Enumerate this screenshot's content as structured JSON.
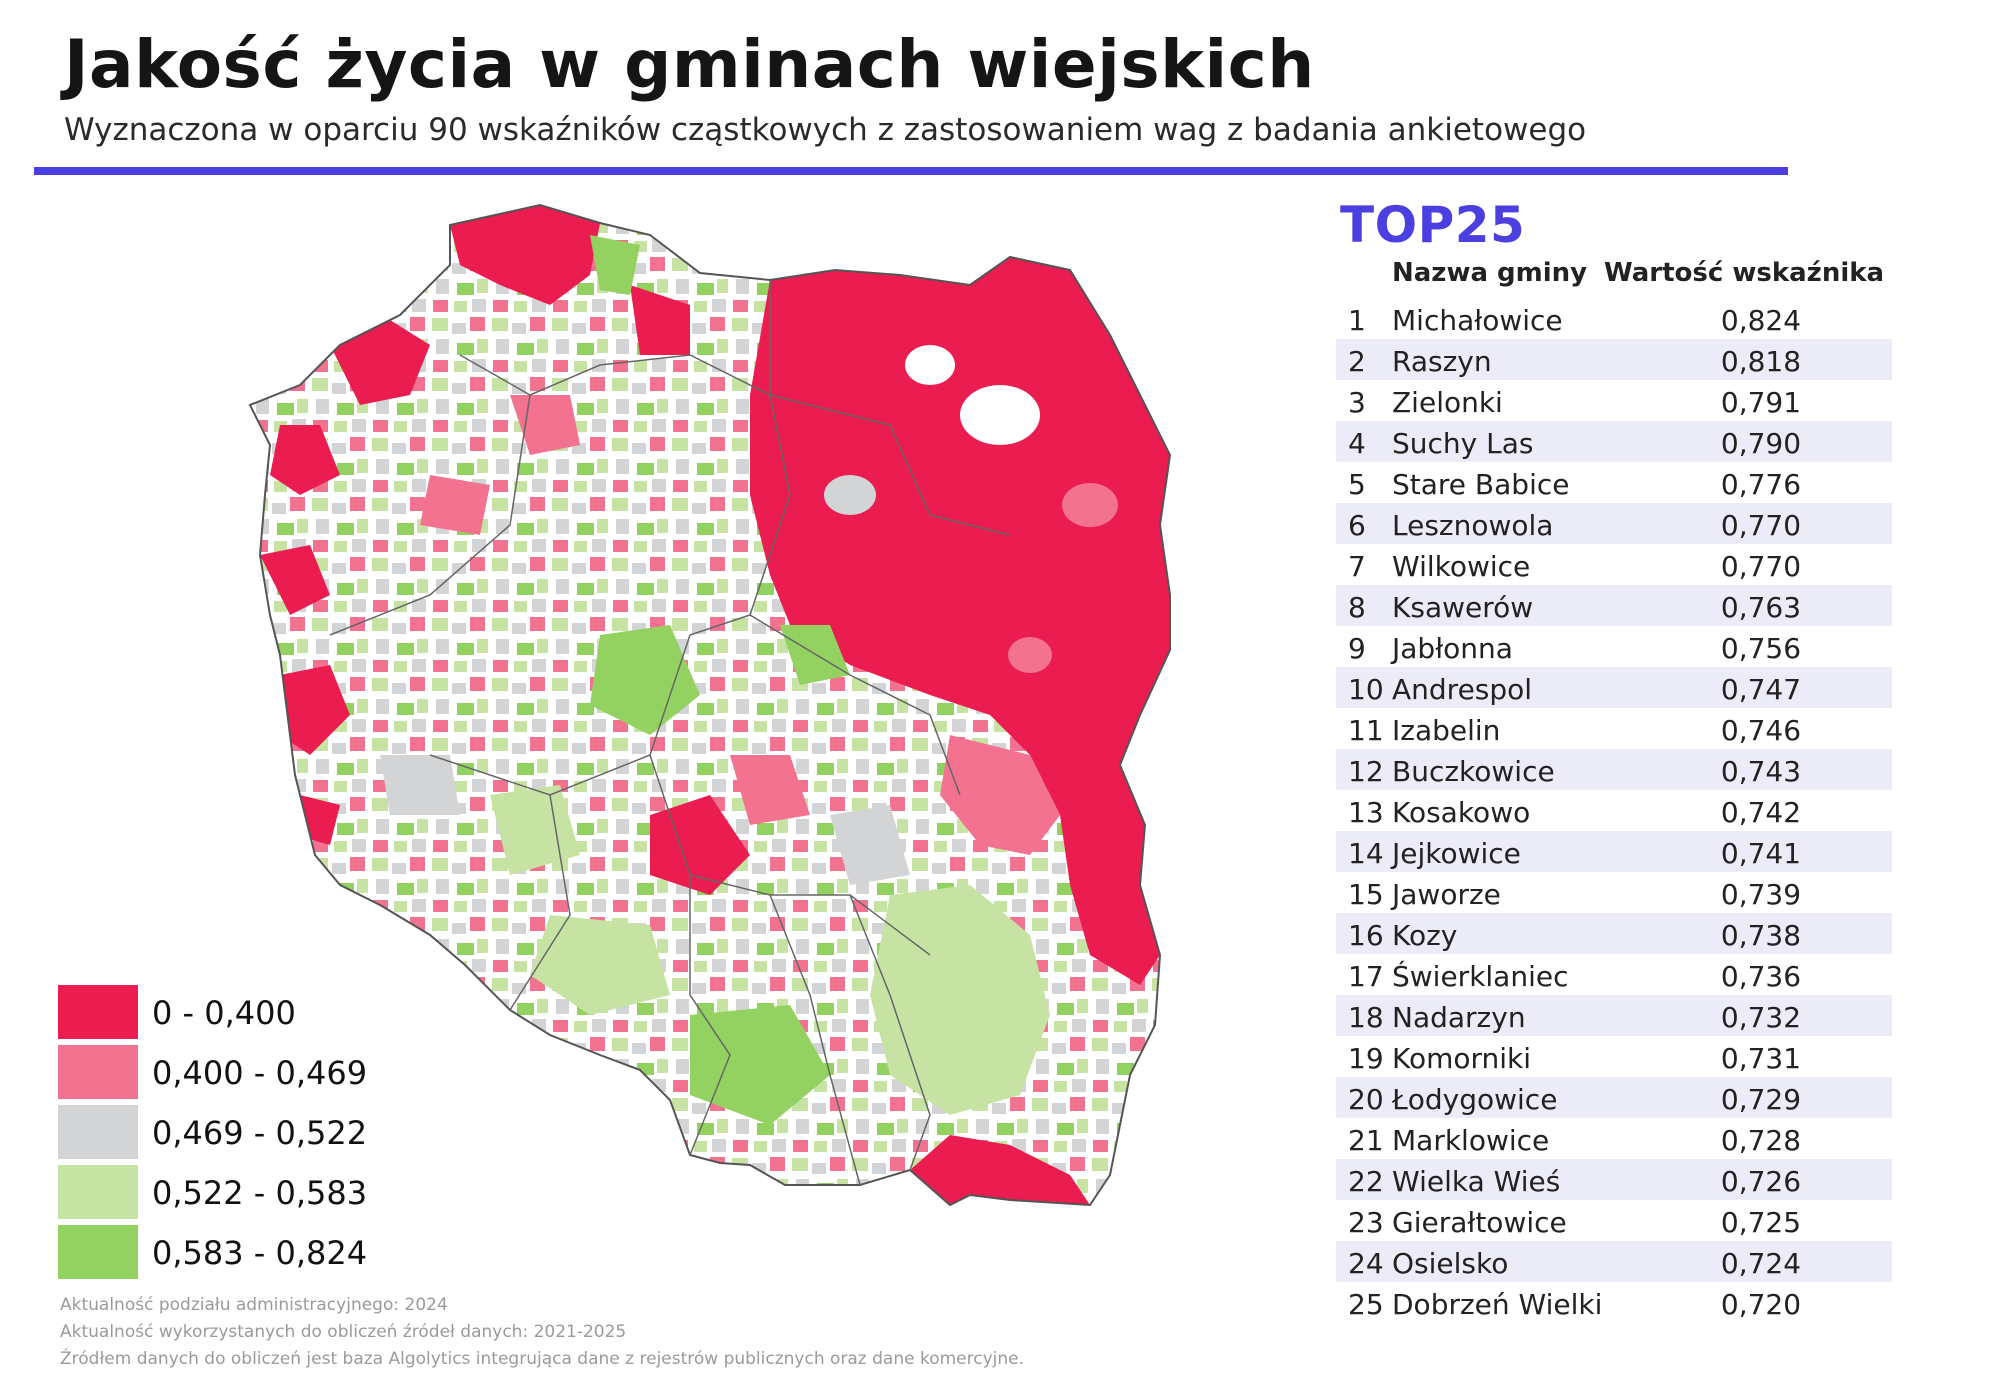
{
  "header": {
    "title": "Jakość życia w gminach wiejskich",
    "subtitle": "Wyznaczona w oparciu 90 wskaźników cząstkowych z zastosowaniem wag z badania ankietowego"
  },
  "colors": {
    "accent": "#4b3fe0",
    "class_0": "#eb1c4f",
    "class_1": "#f3728f",
    "class_2": "#d3d4d6",
    "class_3": "#c6e3a3",
    "class_4": "#93d261",
    "no_data": "#ffffff"
  },
  "legend": {
    "items": [
      {
        "label": "0 - 0,400",
        "color": "#eb1c4f"
      },
      {
        "label": "0,400 - 0,469",
        "color": "#f3728f"
      },
      {
        "label": "0,469 - 0,522",
        "color": "#d3d4d6"
      },
      {
        "label": "0,522 - 0,583",
        "color": "#c6e3a3"
      },
      {
        "label": "0,583 - 0,824",
        "color": "#93d261"
      }
    ]
  },
  "notes": [
    "Aktualność podziału administracyjnego: 2024",
    "Aktualność wykorzystanych do obliczeń źródeł danych: 2021-2025",
    "Źródłem danych do obliczeń jest baza Algolytics integrująca dane z rejestrów publicznych oraz dane komercyjne."
  ],
  "top25": {
    "heading": "TOP25",
    "col_name": "Nazwa gminy",
    "col_value": "Wartość wskaźnika",
    "rows": [
      {
        "rank": "1",
        "name": "Michałowice",
        "value": "0,824"
      },
      {
        "rank": "2",
        "name": "Raszyn",
        "value": "0,818"
      },
      {
        "rank": "3",
        "name": "Zielonki",
        "value": "0,791"
      },
      {
        "rank": "4",
        "name": "Suchy Las",
        "value": "0,790"
      },
      {
        "rank": "5",
        "name": "Stare Babice",
        "value": "0,776"
      },
      {
        "rank": "6",
        "name": "Lesznowola",
        "value": "0,770"
      },
      {
        "rank": "7",
        "name": "Wilkowice",
        "value": "0,770"
      },
      {
        "rank": "8",
        "name": "Ksawerów",
        "value": "0,763"
      },
      {
        "rank": "9",
        "name": "Jabłonna",
        "value": "0,756"
      },
      {
        "rank": "10",
        "name": "Andrespol",
        "value": "0,747"
      },
      {
        "rank": "11",
        "name": "Izabelin",
        "value": "0,746"
      },
      {
        "rank": "12",
        "name": "Buczkowice",
        "value": "0,743"
      },
      {
        "rank": "13",
        "name": "Kosakowo",
        "value": "0,742"
      },
      {
        "rank": "14",
        "name": "Jejkowice",
        "value": "0,741"
      },
      {
        "rank": "15",
        "name": "Jaworze",
        "value": "0,739"
      },
      {
        "rank": "16",
        "name": "Kozy",
        "value": "0,738"
      },
      {
        "rank": "17",
        "name": "Świerklaniec",
        "value": "0,736"
      },
      {
        "rank": "18",
        "name": "Nadarzyn",
        "value": "0,732"
      },
      {
        "rank": "19",
        "name": "Komorniki",
        "value": "0,731"
      },
      {
        "rank": "20",
        "name": "Łodygowice",
        "value": "0,729"
      },
      {
        "rank": "21",
        "name": "Marklowice",
        "value": "0,728"
      },
      {
        "rank": "22",
        "name": "Wielka Wieś",
        "value": "0,726"
      },
      {
        "rank": "23",
        "name": "Gierałtowice",
        "value": "0,725"
      },
      {
        "rank": "24",
        "name": "Osielsko",
        "value": "0,724"
      },
      {
        "rank": "25",
        "name": "Dobrzeń Wielki",
        "value": "0,720"
      }
    ]
  }
}
